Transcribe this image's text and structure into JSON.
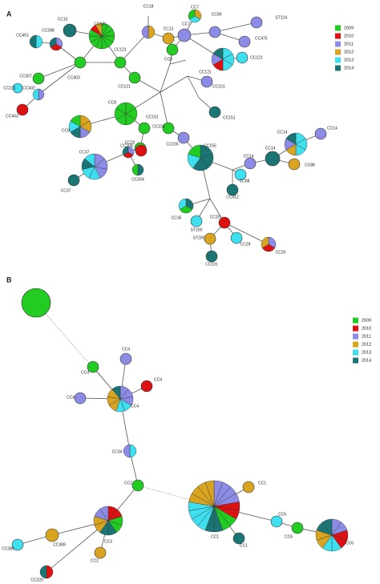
{
  "panels": [
    {
      "label": "A",
      "legend": [
        {
          "year": "2009",
          "color": "#22cc22"
        },
        {
          "year": "2010",
          "color": "#dd1111"
        },
        {
          "year": "2011",
          "color": "#8c8ce6"
        },
        {
          "year": "2012",
          "color": "#d9a521"
        },
        {
          "year": "2013",
          "color": "#3ee0f0"
        },
        {
          "year": "2014",
          "color": "#1b7575"
        }
      ],
      "nodes": [
        "CC121",
        "CC15",
        "CC398",
        "CC451",
        "CC403",
        "CC121",
        "CC121",
        "CC18",
        "CC12",
        "CC7",
        "CC7",
        "CC90",
        "ST124",
        "CC475",
        "CC121",
        "CC121",
        "CC8",
        "CC101",
        "CC151",
        "CC307",
        "CC402",
        "CC231",
        "CC403",
        "CC8",
        "CC8",
        "CC151",
        "CC20",
        "CC37",
        "CC204",
        "CC204",
        "CC37",
        "CC155",
        "CC155",
        "CC155",
        "CC14",
        "CC14",
        "CC14",
        "CC14",
        "CC88",
        "CC88",
        "CC412",
        "CC35",
        "ST200",
        "CC20",
        "ST200",
        "CC29",
        "CC20",
        "CC101"
      ]
    },
    {
      "label": "B",
      "legend": [
        {
          "year": "2009",
          "color": "#22cc22"
        },
        {
          "year": "2010",
          "color": "#dd1111"
        },
        {
          "year": "2011",
          "color": "#8c8ce6"
        },
        {
          "year": "2012",
          "color": "#d9a521"
        },
        {
          "year": "2013",
          "color": "#3ee0f0"
        },
        {
          "year": "2014",
          "color": "#1b7575"
        }
      ],
      "nodes": [
        "CC4",
        "CC4",
        "CC4",
        "CC4",
        "CC4",
        "CC34",
        "CC2",
        "CC3",
        "CC389",
        "CC389",
        "CC2",
        "CC220",
        "CC1",
        "CC1",
        "CC1",
        "CC6",
        "CC6",
        "CC6"
      ]
    }
  ]
}
